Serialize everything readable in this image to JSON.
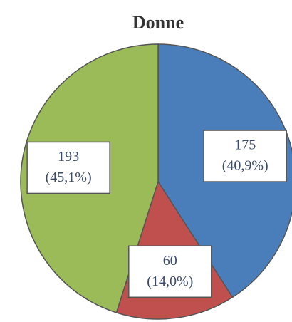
{
  "chart_data": {
    "type": "pie",
    "title": "Donne",
    "categories": [
      null,
      null,
      null
    ],
    "values": [
      175,
      60,
      193
    ],
    "percent_labels": [
      "(40,9%)",
      "(14,0%)",
      "(45,1%)"
    ],
    "colors": [
      "#4a7ebb",
      "#c0504d",
      "#9bbb59"
    ]
  }
}
